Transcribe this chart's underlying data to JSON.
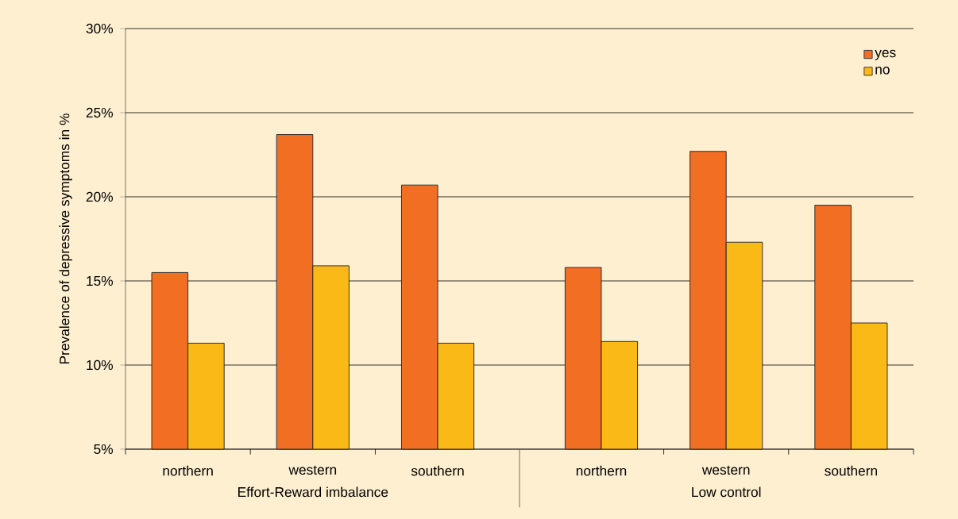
{
  "chart_data": {
    "type": "bar",
    "ylabel": "Prevalence of depressive symptoms in %",
    "categories": [
      "northern",
      "western",
      "southern",
      "northern",
      "western",
      "southern"
    ],
    "series": [
      {
        "name": "yes",
        "color": "#f26e22",
        "values": [
          15.5,
          23.7,
          20.7,
          15.8,
          22.7,
          19.5
        ]
      },
      {
        "name": "no",
        "color": "#fbb917",
        "values": [
          11.3,
          15.9,
          11.3,
          11.4,
          17.3,
          12.5
        ]
      }
    ],
    "annotations": [
      "Effort-Reward imbalance",
      "Low control"
    ],
    "ylim": [
      5,
      30
    ],
    "yticks": [
      {
        "value": 5,
        "label": "5%"
      },
      {
        "value": 10,
        "label": "10%"
      },
      {
        "value": 15,
        "label": "15%"
      },
      {
        "value": 20,
        "label": "20%"
      },
      {
        "value": 25,
        "label": "25%"
      },
      {
        "value": 30,
        "label": "30%"
      }
    ],
    "grid": "y",
    "legend": "top right"
  }
}
